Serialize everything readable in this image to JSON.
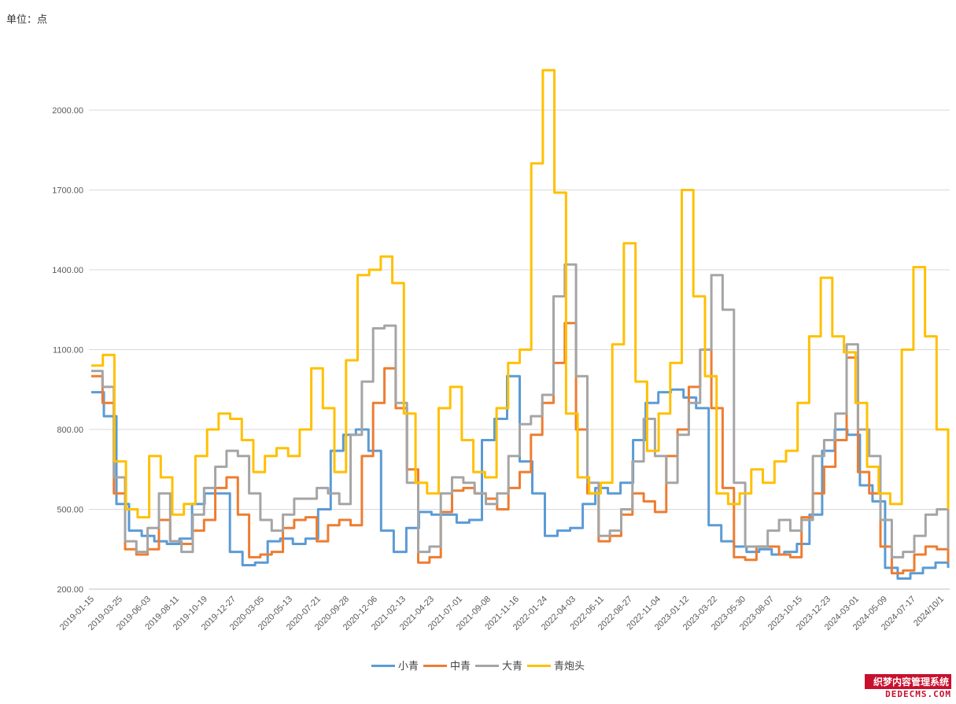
{
  "unit_label": "单位：点",
  "watermark": {
    "line1": "织梦内容管理系统",
    "line2": "DEDECMS.COM"
  },
  "colors": {
    "小青": "#5b9bd5",
    "中青": "#ed7d31",
    "大青": "#a5a5a5",
    "青炮头": "#ffc000",
    "grid": "#d9d9d9"
  },
  "chart_data": {
    "type": "line",
    "ylim": [
      200,
      2000
    ],
    "yticks": [
      "200.00",
      "500.00",
      "800.00",
      "1100.00",
      "1400.00",
      "1700.00",
      "2000.00"
    ],
    "xlabels": [
      "2019-01-15",
      "2019-03-25",
      "2019-06-03",
      "2019-08-11",
      "2019-10-19",
      "2019-12-27",
      "2020-03-05",
      "2020-05-13",
      "2020-07-21",
      "2020-09-28",
      "2020-12-06",
      "2021-02-13",
      "2021-04-23",
      "2021-07-01",
      "2021-09-08",
      "2021-11-16",
      "2022-01-24",
      "2022-04-03",
      "2022-06-11",
      "2022-08-27",
      "2022-11-04",
      "2023-01-12",
      "2023-03-22",
      "2023-05-30",
      "2023-08-07",
      "2023-10-15",
      "2023-12-23",
      "2024-03-01",
      "2024-05-09",
      "2024-07-17",
      "2024/10/1"
    ],
    "legend_position": "bottom",
    "grid": true,
    "series": [
      {
        "name": "小青",
        "values": [
          940,
          850,
          520,
          420,
          400,
          380,
          370,
          390,
          520,
          560,
          560,
          340,
          290,
          300,
          380,
          390,
          370,
          390,
          500,
          720,
          780,
          800,
          720,
          420,
          340,
          430,
          490,
          480,
          480,
          450,
          460,
          760,
          840,
          1000,
          680,
          560,
          400,
          420,
          430,
          520,
          580,
          560,
          600,
          760,
          900,
          940,
          950,
          920,
          880,
          440,
          380,
          360,
          340,
          350,
          330,
          340,
          370,
          480,
          720,
          800,
          780,
          590,
          530,
          280,
          240,
          260,
          280,
          300,
          280
        ]
      },
      {
        "name": "中青",
        "values": [
          1000,
          900,
          560,
          350,
          330,
          350,
          460,
          380,
          370,
          420,
          460,
          580,
          620,
          480,
          320,
          330,
          340,
          430,
          460,
          470,
          380,
          440,
          460,
          440,
          700,
          900,
          1030,
          880,
          650,
          300,
          320,
          490,
          570,
          580,
          560,
          540,
          500,
          580,
          640,
          780,
          900,
          1050,
          1200,
          800,
          560,
          380,
          400,
          480,
          560,
          530,
          490,
          700,
          800,
          960,
          1100,
          880,
          580,
          320,
          310,
          360,
          360,
          330,
          320,
          470,
          560,
          660,
          760,
          1070,
          640,
          560,
          360,
          260,
          270,
          330,
          360,
          350,
          300
        ]
      },
      {
        "name": "大青",
        "values": [
          1020,
          960,
          620,
          380,
          340,
          430,
          560,
          380,
          340,
          480,
          580,
          660,
          720,
          700,
          560,
          460,
          420,
          480,
          540,
          540,
          580,
          560,
          520,
          780,
          980,
          1180,
          1190,
          900,
          600,
          340,
          360,
          560,
          620,
          600,
          560,
          520,
          560,
          700,
          820,
          850,
          930,
          1300,
          1420,
          1000,
          600,
          400,
          420,
          500,
          680,
          840,
          700,
          600,
          780,
          900,
          1100,
          1380,
          1250,
          600,
          360,
          360,
          420,
          460,
          420,
          460,
          700,
          760,
          860,
          1120,
          800,
          700,
          460,
          320,
          340,
          400,
          480,
          500,
          350
        ]
      },
      {
        "name": "青炮头",
        "values": [
          1040,
          1080,
          680,
          500,
          470,
          700,
          620,
          480,
          520,
          700,
          800,
          860,
          840,
          760,
          640,
          700,
          730,
          700,
          800,
          1030,
          880,
          640,
          1060,
          1380,
          1400,
          1450,
          1350,
          860,
          600,
          560,
          880,
          960,
          760,
          640,
          620,
          880,
          1050,
          1100,
          1800,
          2150,
          1690,
          860,
          620,
          560,
          600,
          1120,
          1500,
          980,
          720,
          860,
          1050,
          1700,
          1300,
          1000,
          560,
          520,
          560,
          650,
          600,
          680,
          720,
          900,
          1150,
          1370,
          1150,
          1090,
          900,
          660,
          560,
          520,
          1100,
          1410,
          1150,
          800,
          500
        ]
      }
    ]
  }
}
